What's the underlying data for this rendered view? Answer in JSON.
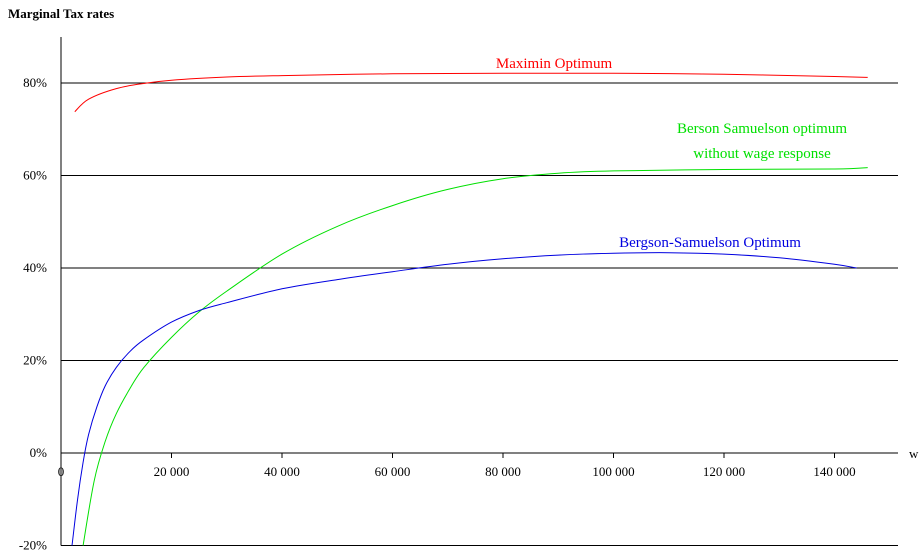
{
  "chart_data": {
    "type": "line",
    "title": "Marginal Tax rates",
    "xlabel": "w",
    "ylabel": "",
    "xlim": [
      0,
      146000
    ],
    "ylim": [
      -20,
      90
    ],
    "grid": "horizontal lines at 20% steps from 20% to 80%",
    "xticks": [
      0,
      20000,
      40000,
      60000,
      80000,
      100000,
      120000,
      140000
    ],
    "xtick_labels": [
      "0",
      "20 000",
      "40 000",
      "60 000",
      "80 000",
      "100 000",
      "120 000",
      "140 000"
    ],
    "yticks": [
      -20,
      0,
      20,
      40,
      60,
      80
    ],
    "ytick_labels": [
      "-20%",
      "0%",
      "20%",
      "40%",
      "60%",
      "80%"
    ],
    "series": [
      {
        "name": "Maximin Optimum",
        "label_lines": [
          "Maximin Optimum"
        ],
        "color": "#ff0000",
        "x": [
          2500,
          5000,
          10000,
          15000,
          20000,
          30000,
          40000,
          60000,
          80000,
          100000,
          120000,
          140000,
          146000
        ],
        "y": [
          73.8,
          76.5,
          78.8,
          79.9,
          80.6,
          81.3,
          81.6,
          82.0,
          82.1,
          82.1,
          81.9,
          81.4,
          81.2
        ]
      },
      {
        "name": "Berson Samuelson optimum without wage response",
        "label_lines": [
          "Berson Samuelson optimum",
          "without wage response"
        ],
        "color": "#00e000",
        "x": [
          4000,
          6000,
          8000,
          10000,
          12500,
          15000,
          20000,
          25000,
          30000,
          40000,
          50000,
          60000,
          70000,
          80000,
          90000,
          100000,
          120000,
          140000,
          146000
        ],
        "y": [
          -20,
          -6,
          2.5,
          8.5,
          14,
          18.5,
          25,
          30.5,
          35,
          43,
          49,
          53.5,
          57,
          59.3,
          60.5,
          61,
          61.3,
          61.4,
          61.7
        ]
      },
      {
        "name": "Bergson-Samuelson Optimum",
        "label_lines": [
          "Bergson-Samuelson Optimum"
        ],
        "color": "#0000e0",
        "x": [
          2000,
          3000,
          4000,
          5000,
          6500,
          8000,
          10000,
          12500,
          15000,
          20000,
          25000,
          30000,
          40000,
          50000,
          60000,
          70000,
          80000,
          90000,
          100000,
          110000,
          120000,
          130000,
          140000,
          144000
        ],
        "y": [
          -20,
          -10,
          -2,
          4,
          10,
          14.5,
          18.5,
          22,
          24.5,
          28.3,
          30.8,
          32.5,
          35.5,
          37.5,
          39.2,
          40.8,
          42,
          42.8,
          43.2,
          43.3,
          43,
          42.2,
          40.8,
          40
        ]
      }
    ]
  }
}
